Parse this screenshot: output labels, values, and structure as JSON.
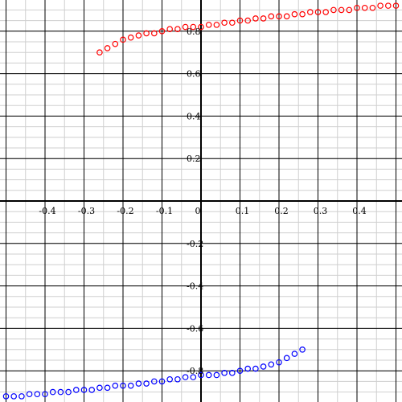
{
  "chart_data": {
    "type": "scatter",
    "title": "",
    "xlabel": "",
    "ylabel": "",
    "xlim": [
      -0.5,
      0.5
    ],
    "ylim": [
      -0.95,
      0.95
    ],
    "grid": true,
    "x_ticks": [
      {
        "value": -0.4,
        "label": "-0.4"
      },
      {
        "value": -0.3,
        "label": "-0.3"
      },
      {
        "value": -0.2,
        "label": "-0.2"
      },
      {
        "value": -0.1,
        "label": "-0.1"
      },
      {
        "value": 0,
        "label": "0"
      },
      {
        "value": 0.1,
        "label": "0.1"
      },
      {
        "value": 0.2,
        "label": "0.2"
      },
      {
        "value": 0.3,
        "label": "0.3"
      },
      {
        "value": 0.4,
        "label": "0.4"
      }
    ],
    "y_ticks": [
      {
        "value": 0.8,
        "label": "0.8"
      },
      {
        "value": 0.6,
        "label": "0.6"
      },
      {
        "value": 0.4,
        "label": "0.4"
      },
      {
        "value": 0.2,
        "label": "0.2"
      },
      {
        "value": -0.2,
        "label": "-0.2"
      },
      {
        "value": -0.4,
        "label": "-0.4"
      },
      {
        "value": -0.6,
        "label": "-0.6"
      },
      {
        "value": -0.8,
        "label": "-0.8"
      }
    ],
    "series": [
      {
        "color": "#ff0000",
        "marker": "circle-open",
        "points": [
          [
            -0.26,
            0.7
          ],
          [
            -0.24,
            0.72
          ],
          [
            -0.22,
            0.74
          ],
          [
            -0.2,
            0.76
          ],
          [
            -0.18,
            0.77
          ],
          [
            -0.16,
            0.78
          ],
          [
            -0.14,
            0.79
          ],
          [
            -0.12,
            0.79
          ],
          [
            -0.1,
            0.8
          ],
          [
            -0.08,
            0.81
          ],
          [
            -0.06,
            0.81
          ],
          [
            -0.04,
            0.82
          ],
          [
            -0.02,
            0.82
          ],
          [
            0.0,
            0.82
          ],
          [
            0.02,
            0.83
          ],
          [
            0.04,
            0.83
          ],
          [
            0.06,
            0.84
          ],
          [
            0.08,
            0.84
          ],
          [
            0.1,
            0.85
          ],
          [
            0.12,
            0.85
          ],
          [
            0.14,
            0.86
          ],
          [
            0.16,
            0.86
          ],
          [
            0.18,
            0.87
          ],
          [
            0.2,
            0.87
          ],
          [
            0.22,
            0.87
          ],
          [
            0.24,
            0.88
          ],
          [
            0.26,
            0.88
          ],
          [
            0.28,
            0.89
          ],
          [
            0.3,
            0.89
          ],
          [
            0.32,
            0.89
          ],
          [
            0.34,
            0.9
          ],
          [
            0.36,
            0.9
          ],
          [
            0.38,
            0.9
          ],
          [
            0.4,
            0.91
          ],
          [
            0.42,
            0.91
          ],
          [
            0.44,
            0.91
          ],
          [
            0.46,
            0.92
          ],
          [
            0.48,
            0.92
          ],
          [
            0.5,
            0.92
          ]
        ]
      },
      {
        "color": "#0000ff",
        "marker": "circle-open",
        "points": [
          [
            -0.5,
            -0.92
          ],
          [
            -0.48,
            -0.92
          ],
          [
            -0.46,
            -0.92
          ],
          [
            -0.44,
            -0.91
          ],
          [
            -0.42,
            -0.91
          ],
          [
            -0.4,
            -0.91
          ],
          [
            -0.38,
            -0.9
          ],
          [
            -0.36,
            -0.9
          ],
          [
            -0.34,
            -0.9
          ],
          [
            -0.32,
            -0.89
          ],
          [
            -0.3,
            -0.89
          ],
          [
            -0.28,
            -0.89
          ],
          [
            -0.26,
            -0.88
          ],
          [
            -0.24,
            -0.88
          ],
          [
            -0.22,
            -0.87
          ],
          [
            -0.2,
            -0.87
          ],
          [
            -0.18,
            -0.87
          ],
          [
            -0.16,
            -0.86
          ],
          [
            -0.14,
            -0.86
          ],
          [
            -0.12,
            -0.85
          ],
          [
            -0.1,
            -0.85
          ],
          [
            -0.08,
            -0.84
          ],
          [
            -0.06,
            -0.84
          ],
          [
            -0.04,
            -0.83
          ],
          [
            -0.02,
            -0.83
          ],
          [
            0.0,
            -0.82
          ],
          [
            0.02,
            -0.82
          ],
          [
            0.04,
            -0.82
          ],
          [
            0.06,
            -0.81
          ],
          [
            0.08,
            -0.81
          ],
          [
            0.1,
            -0.8
          ],
          [
            0.12,
            -0.79
          ],
          [
            0.14,
            -0.79
          ],
          [
            0.16,
            -0.78
          ],
          [
            0.18,
            -0.77
          ],
          [
            0.2,
            -0.76
          ],
          [
            0.22,
            -0.74
          ],
          [
            0.24,
            -0.72
          ],
          [
            0.26,
            -0.7
          ]
        ]
      }
    ]
  }
}
